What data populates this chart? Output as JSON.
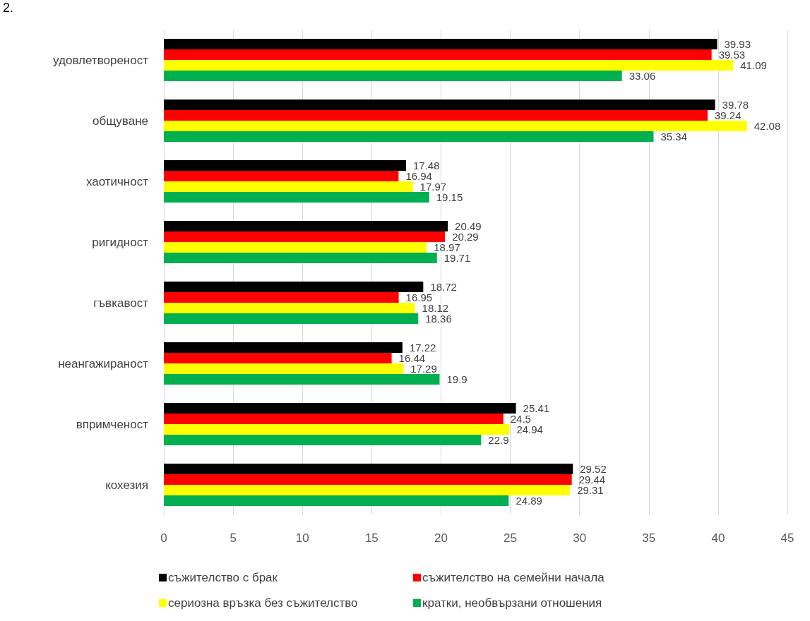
{
  "chart_data": {
    "type": "bar",
    "orientation": "horizontal",
    "annotations": [
      "2."
    ],
    "categories": [
      "удовлетвореност",
      "общуване",
      "хаотичност",
      "ригидност",
      "гъвкавост",
      "неангажираност",
      "впримченост",
      "кохезия"
    ],
    "series": [
      {
        "name": "съжителство с брак",
        "color": "#000000",
        "values": [
          39.93,
          39.78,
          17.48,
          20.49,
          18.72,
          17.22,
          25.41,
          29.52
        ]
      },
      {
        "name": "съжителство на семейни начала",
        "color": "#ff0000",
        "values": [
          39.53,
          39.24,
          16.94,
          20.29,
          16.95,
          16.44,
          24.5,
          29.44
        ]
      },
      {
        "name": "сериозна връзка без съжителство",
        "color": "#ffff00",
        "values": [
          41.09,
          42.08,
          17.97,
          18.97,
          18.12,
          17.29,
          24.94,
          29.31
        ]
      },
      {
        "name": "кратки, необвързани отношения",
        "color": "#00b050",
        "values": [
          33.06,
          35.34,
          19.15,
          19.71,
          18.36,
          19.9,
          22.9,
          24.89
        ]
      }
    ],
    "xlim": [
      0,
      45
    ],
    "xticks": [
      0,
      5,
      10,
      15,
      20,
      25,
      30,
      35,
      40,
      45
    ],
    "grid": "x",
    "legend": "bottom",
    "data_labels": true
  }
}
